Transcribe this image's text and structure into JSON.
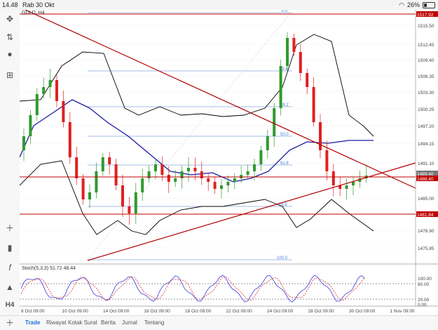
{
  "status": {
    "time": "14.48",
    "date": "Rab 30 Okt",
    "battery": "26%",
    "battery_level": 0.26
  },
  "chart": {
    "symbol": "GOLD, H4",
    "price_ticks": [
      "1515.50",
      "1512.45",
      "1509.40",
      "1506.35",
      "1503.30",
      "1500.25",
      "1497.20",
      "1494.15",
      "1491.10",
      "1485.00",
      "1478.90",
      "1475.85"
    ],
    "price_badges": [
      "1517.92",
      "1489.40",
      "1488.40",
      "1481.84"
    ],
    "fib_labels": [
      "0.0",
      "23.6",
      "38.2",
      "50.0",
      "61.8",
      "78.6",
      "100.0"
    ],
    "stoch_label": "Stoch(5,3,3) 51.72 48.44",
    "stoch_ticks": [
      "100.00",
      "80.00",
      "20.00",
      "0.00"
    ],
    "date_ticks": [
      "8 Oct 09:00",
      "10 Oct 09:00",
      "14 Oct 09:00",
      "16 Oct 09:00",
      "18 Oct 09:00",
      "22 Oct 09:00",
      "24 Oct 09:00",
      "28 Oct 09:00",
      "30 Oct 09:00",
      "1 Nov 09:00"
    ],
    "colors": {
      "bull": "#2f9a2f",
      "bear": "#e02020",
      "bands": "#000000",
      "ma": "#1a1aa0",
      "hline": "#c00000",
      "trend": "#b00000",
      "fib": "#4a7fd0",
      "stoch_main": "#3a3ae0",
      "stoch_signal": "#e03030"
    }
  },
  "tabs": [
    {
      "label": "Trade",
      "active": true
    },
    {
      "label": "Riwayat",
      "active": false
    },
    {
      "label": "Kotak Surat",
      "active": false
    },
    {
      "label": "Berita",
      "active": false
    },
    {
      "label": "Jurnal",
      "active": false
    },
    {
      "label": "Tentang",
      "active": false
    }
  ]
}
